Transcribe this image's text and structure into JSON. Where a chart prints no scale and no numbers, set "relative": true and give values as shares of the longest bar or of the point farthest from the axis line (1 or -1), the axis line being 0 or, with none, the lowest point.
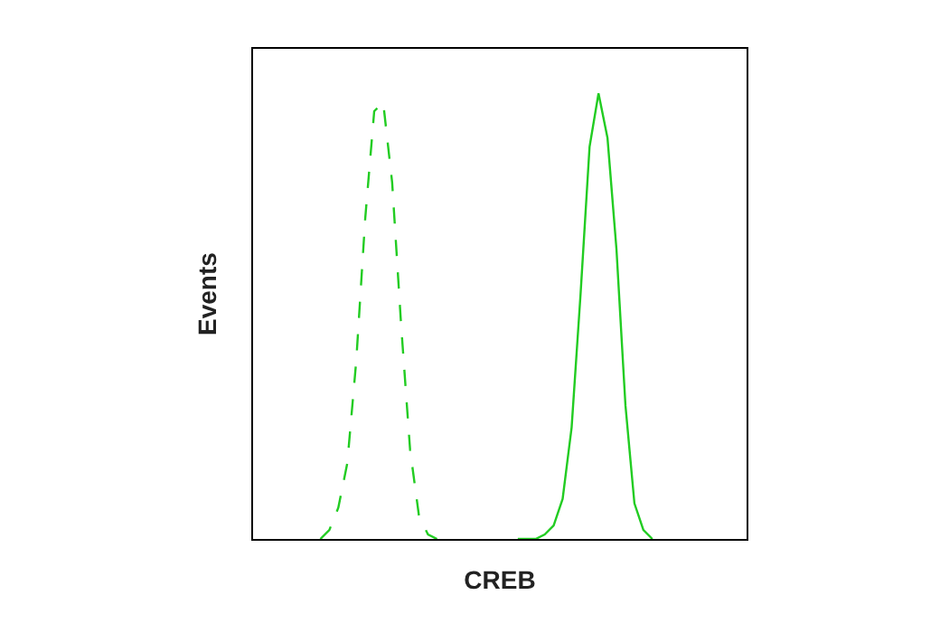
{
  "chart_data": {
    "type": "line",
    "relative": true,
    "xlabel": "CREB",
    "ylabel": "Events",
    "marker": "none",
    "categories": [
      null,
      null,
      null,
      null,
      null,
      null,
      null,
      null,
      null,
      null,
      null,
      null,
      null,
      null,
      null,
      null,
      null,
      null,
      null,
      null,
      null,
      null,
      null,
      null,
      null,
      null,
      null,
      null,
      null,
      null,
      null,
      null,
      null,
      null,
      null,
      null,
      null,
      null,
      null,
      null,
      null,
      null,
      null,
      null,
      null,
      null,
      null,
      null,
      null,
      null,
      null,
      null,
      null,
      null,
      null
    ],
    "series": [
      {
        "color": "#22cc22",
        "line_style": "dashed",
        "values": [
          null,
          null,
          null,
          null,
          null,
          null,
          null,
          0,
          0.02,
          0.07,
          0.17,
          0.4,
          0.72,
          0.96,
          0.98,
          0.8,
          0.48,
          0.2,
          0.05,
          0.01,
          0,
          null,
          null,
          null,
          null,
          null,
          null,
          null,
          null,
          null,
          null,
          null,
          null,
          null,
          null,
          null,
          null,
          null,
          null,
          null,
          null,
          null,
          null,
          null,
          null,
          null,
          null,
          null,
          null,
          null,
          null,
          null,
          null,
          null,
          null
        ]
      },
      {
        "color": "#22cc22",
        "line_style": "solid",
        "values": [
          null,
          null,
          null,
          null,
          null,
          null,
          null,
          null,
          null,
          null,
          null,
          null,
          null,
          null,
          null,
          null,
          null,
          null,
          null,
          null,
          null,
          null,
          null,
          null,
          null,
          null,
          null,
          null,
          null,
          0,
          0,
          0,
          0.01,
          0.03,
          0.09,
          0.25,
          0.55,
          0.88,
          1,
          0.9,
          0.65,
          0.3,
          0.08,
          0.02,
          0,
          null,
          null,
          null,
          null,
          null,
          null,
          null,
          null,
          null,
          null
        ]
      }
    ]
  }
}
